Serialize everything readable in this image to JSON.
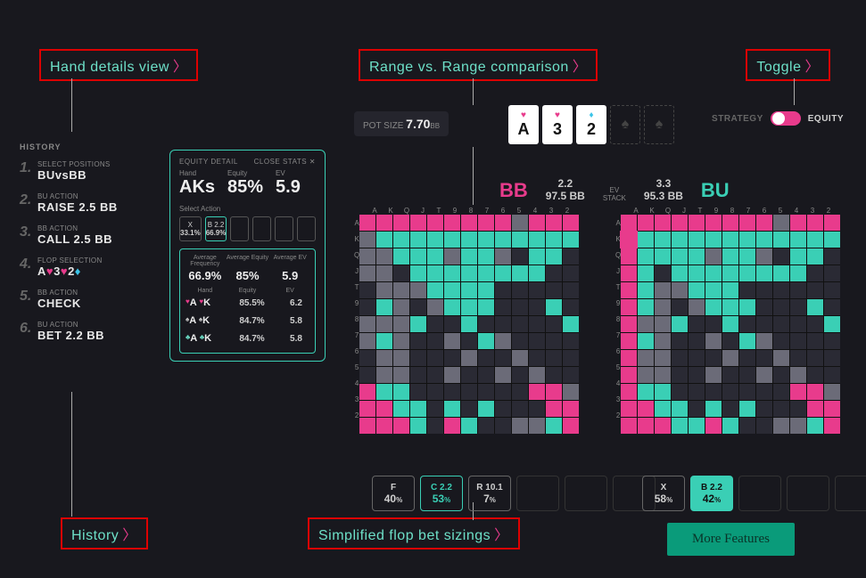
{
  "callouts": {
    "hand_details": "Hand details view",
    "range_compare": "Range vs. Range comparison",
    "toggle": "Toggle",
    "history": "History",
    "bet_sizings": "Simplified flop bet sizings"
  },
  "history": {
    "title": "HISTORY",
    "items": [
      {
        "n": "1.",
        "label": "SELECT POSITIONS",
        "value": "BUᴠsBB"
      },
      {
        "n": "2.",
        "label": "BU ACTION",
        "value": "RAISE 2.5 BB"
      },
      {
        "n": "3.",
        "label": "BB ACTION",
        "value": "CALL 2.5 BB"
      },
      {
        "n": "4.",
        "label": "FLOP SELECTION",
        "value": "A♥3♥2♦"
      },
      {
        "n": "5.",
        "label": "BB ACTION",
        "value": "CHECK"
      },
      {
        "n": "6.",
        "label": "BU ACTION",
        "value": "BET 2.2 BB"
      }
    ]
  },
  "equity": {
    "title": "EQUITY DETAIL",
    "close": "CLOSE STATS ✕",
    "hand_lbl": "Hand",
    "hand": "AKs",
    "eq_lbl": "Equity",
    "eq": "85%",
    "ev_lbl": "EV",
    "ev": "5.9",
    "sel_action": "Select Action",
    "actions": [
      {
        "t": "X",
        "b": "33.1%",
        "sel": false
      },
      {
        "t": "B 2.2",
        "b": "66.9%",
        "sel": true
      }
    ],
    "avg": {
      "freq_l": "Average Frequency",
      "freq": "66.9%",
      "eq_l": "Average Equity",
      "eq": "85%",
      "ev_l": "Average EV",
      "ev": "5.9",
      "hand_l": "Hand",
      "equity_l": "Equity",
      "evcol_l": "EV",
      "rows": [
        {
          "s1": "♥",
          "c1": "A",
          "s2": "♥",
          "c2": "K",
          "sc": "#e83b8c",
          "eq": "85.5%",
          "ev": "6.2"
        },
        {
          "s1": "♠",
          "c1": "A",
          "s2": "♠",
          "c2": "K",
          "sc": "#ccc",
          "eq": "84.7%",
          "ev": "5.8"
        },
        {
          "s1": "♣",
          "c1": "A",
          "s2": "♣",
          "c2": "K",
          "sc": "#6de0c8",
          "eq": "84.7%",
          "ev": "5.8"
        }
      ]
    }
  },
  "pot": {
    "label": "POT SIZE",
    "value": "7.70",
    "unit": "BB"
  },
  "board": [
    {
      "rank": "A",
      "suit": "♥",
      "color": "#e83b8c"
    },
    {
      "rank": "3",
      "suit": "♥",
      "color": "#e83b8c"
    },
    {
      "rank": "2",
      "suit": "♦",
      "color": "#3bc4e8"
    }
  ],
  "toggle": {
    "left": "STRATEGY",
    "right": "EQUITY"
  },
  "midstats": {
    "left": "BB",
    "right": "BU",
    "cols": [
      {
        "l": "",
        "v": "2.2"
      },
      {
        "l": "",
        "v": "97.5 BB"
      },
      {
        "l": "EV",
        "v": "3.3"
      },
      {
        "l": "STACK",
        "v": "95.3 BB"
      }
    ]
  },
  "ranks": [
    "A",
    "K",
    "Q",
    "J",
    "T",
    "9",
    "8",
    "7",
    "6",
    "5",
    "4",
    "3",
    "2"
  ],
  "colors": {
    "pink": "#e83b8c",
    "teal": "#3acfb5",
    "teal2": "#6de0c8",
    "grey": "#6b6b78",
    "dark": "#2a2a34",
    "bg": "#18181e"
  },
  "left_grid": [
    "pppppppppgppp",
    "gtttttttttttt",
    "ggtttgttg.tt.",
    "gg.tttttttt..",
    ".gggtttt.....",
    ".tg.gttt...t.",
    "gggt..t.....t",
    "gtg..g.tg....",
    ".gg...g..g...",
    ".gg..g..g.g..",
    "ptt.......ppg",
    "pptt.t.t...pp",
    "pppt.pt..ggtp"
  ],
  "right_grid": [
    "pppppppppgppp",
    "ptttttttttttt",
    "pttttgttg.tt.",
    "pt.tttttttt..",
    "ptggttt......",
    "ptg.gttt...t.",
    "pggt..t.....t",
    "ptg..g.tg....",
    "pgg...g..g...",
    "pgg..g..g.g..",
    "ptt.......ppg",
    "pptt.t.t...pp",
    "pppttpt..ggtp"
  ],
  "highlight_right": {
    "r": 1,
    "c": 0
  },
  "bets_left": [
    {
      "t": "F",
      "b": "40",
      "cls": ""
    },
    {
      "t": "C 2.2",
      "b": "53",
      "cls": "teal"
    },
    {
      "t": "R 10.1",
      "b": "7",
      "cls": ""
    },
    {
      "empty": true
    },
    {
      "empty": true
    },
    {
      "empty": true
    }
  ],
  "bets_right": [
    {
      "t": "X",
      "b": "58",
      "cls": ""
    },
    {
      "t": "B 2.2",
      "b": "42",
      "cls": "teal-fill"
    },
    {
      "empty": true
    },
    {
      "empty": true
    },
    {
      "empty": true
    },
    {
      "empty": true
    }
  ],
  "more": "More Features"
}
